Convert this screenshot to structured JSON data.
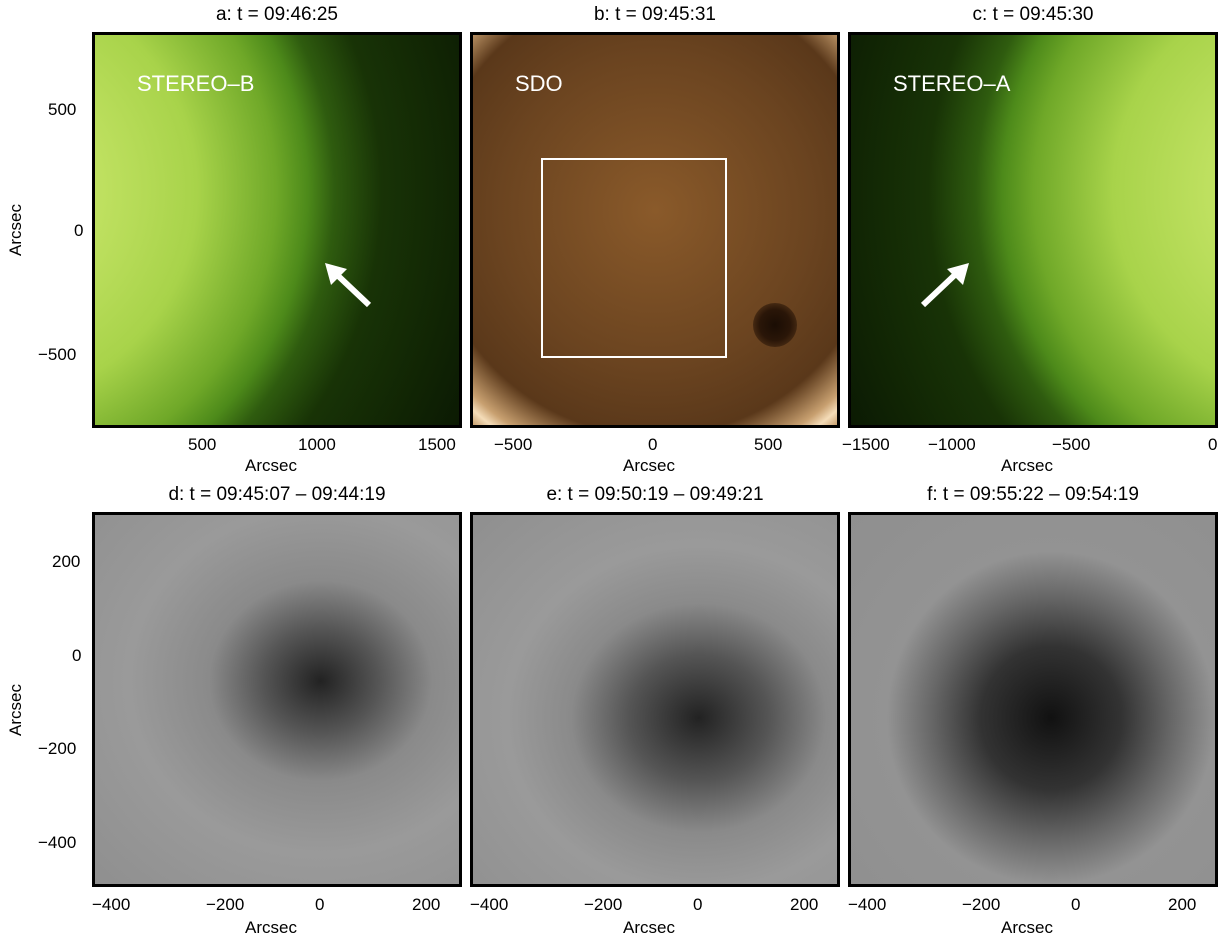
{
  "panels": {
    "a": {
      "title": "a: t = 09:46:25",
      "instrument": "STEREO–B",
      "xlabel": "Arcsec",
      "ylabel": "Arcsec",
      "xticks": [
        "500",
        "1000",
        "1500"
      ],
      "yticks": [
        "500",
        "0",
        "−500"
      ]
    },
    "b": {
      "title": "b: t = 09:45:31",
      "instrument": "SDO",
      "xlabel": "Arcsec",
      "xticks": [
        "−500",
        "0",
        "500"
      ]
    },
    "c": {
      "title": "c: t = 09:45:30",
      "instrument": "STEREO–A",
      "xlabel": "Arcsec",
      "xticks": [
        "−1500",
        "−1000",
        "−500",
        "0"
      ]
    },
    "d": {
      "title": "d: t = 09:45:07 – 09:44:19",
      "xlabel": "Arcsec",
      "ylabel": "Arcsec",
      "xticks": [
        "−400",
        "−200",
        "0",
        "200"
      ],
      "yticks": [
        "200",
        "0",
        "−200",
        "−400"
      ]
    },
    "e": {
      "title": "e: t = 09:50:19 – 09:49:21",
      "xlabel": "Arcsec",
      "xticks": [
        "−400",
        "−200",
        "0",
        "200"
      ]
    },
    "f": {
      "title": "f: t = 09:55:22 – 09:54:19",
      "xlabel": "Arcsec",
      "xticks": [
        "−400",
        "−200",
        "0",
        "200"
      ]
    }
  },
  "colors": {
    "stereo": "#6fa828",
    "sdo": "#6b4420",
    "diff": "#8f8f8f",
    "annotation": "#ffffff"
  },
  "icons": {
    "arrow_b": "arrow-icon",
    "arrow_a": "arrow-icon"
  }
}
